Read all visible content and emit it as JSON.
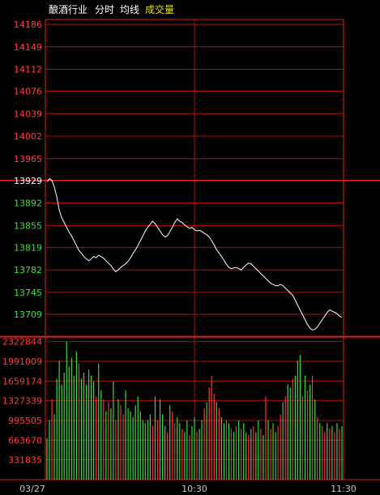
{
  "header": {
    "items": [
      {
        "text": "酿酒行业",
        "color": "#ffffff"
      },
      {
        "text": "分时",
        "color": "#ffffff"
      },
      {
        "text": "均线",
        "color": "#ffffff"
      },
      {
        "text": "成交量",
        "color": "#e8e800"
      }
    ]
  },
  "colors": {
    "background": "#000000",
    "grid": "#b01010",
    "frame": "#e02020",
    "price_line": "#ffffff",
    "up_tick": "#ff4040",
    "down_tick": "#40e040",
    "volume_up": "#ff3030",
    "volume_down": "#30dd30",
    "time_label": "#c8c8c8"
  },
  "chart_data": [
    {
      "type": "line",
      "name": "price",
      "ylim": [
        13672,
        14186
      ],
      "yticks": [
        {
          "label": "14186",
          "value": 14186,
          "dir": "up"
        },
        {
          "label": "14149",
          "value": 14149,
          "dir": "up"
        },
        {
          "label": "14112",
          "value": 14112,
          "dir": "up"
        },
        {
          "label": "14076",
          "value": 14076,
          "dir": "up"
        },
        {
          "label": "14039",
          "value": 14039,
          "dir": "up"
        },
        {
          "label": "14002",
          "value": 14002,
          "dir": "up"
        },
        {
          "label": "13965",
          "value": 13965,
          "dir": "up"
        },
        {
          "label": "13929",
          "value": 13929,
          "dir": "ref"
        },
        {
          "label": "13892",
          "value": 13892,
          "dir": "down"
        },
        {
          "label": "13855",
          "value": 13855,
          "dir": "down"
        },
        {
          "label": "13819",
          "value": 13819,
          "dir": "down"
        },
        {
          "label": "13782",
          "value": 13782,
          "dir": "down"
        },
        {
          "label": "13745",
          "value": 13745,
          "dir": "down"
        },
        {
          "label": "13709",
          "value": 13709,
          "dir": "down"
        }
      ],
      "xlabels": [
        "03/27",
        "10:30",
        "11:30"
      ],
      "x": [
        0,
        1,
        2,
        3,
        4,
        5,
        6,
        7,
        8,
        9,
        10,
        11,
        12,
        13,
        14,
        15,
        16,
        17,
        18,
        19,
        20,
        21,
        22,
        23,
        24,
        25,
        26,
        27,
        28,
        29,
        30,
        31,
        32,
        33,
        34,
        35,
        36,
        37,
        38,
        39,
        40,
        41,
        42,
        43,
        44,
        45,
        46,
        47,
        48,
        49,
        50,
        51,
        52,
        53,
        54,
        55,
        56,
        57,
        58,
        59,
        60,
        61,
        62,
        63,
        64,
        65,
        66,
        67,
        68,
        69,
        70,
        71,
        72,
        73,
        74,
        75,
        76,
        77,
        78,
        79,
        80,
        81,
        82,
        83,
        84,
        85,
        86,
        87,
        88,
        89,
        90,
        91,
        92,
        93,
        94,
        95,
        96,
        97,
        98,
        99,
        100,
        101,
        102,
        103,
        104,
        105,
        106,
        107,
        108,
        109,
        110,
        111,
        112,
        113,
        114,
        115,
        116,
        117,
        118,
        119,
        120
      ],
      "values": [
        13927,
        13932,
        13929,
        13918,
        13902,
        13880,
        13868,
        13860,
        13852,
        13844,
        13838,
        13830,
        13822,
        13814,
        13809,
        13804,
        13800,
        13797,
        13800,
        13804,
        13802,
        13806,
        13804,
        13801,
        13797,
        13793,
        13789,
        13783,
        13779,
        13782,
        13786,
        13789,
        13792,
        13796,
        13802,
        13809,
        13815,
        13822,
        13830,
        13838,
        13846,
        13852,
        13857,
        13862,
        13858,
        13852,
        13846,
        13840,
        13836,
        13838,
        13845,
        13852,
        13860,
        13866,
        13862,
        13860,
        13856,
        13853,
        13850,
        13852,
        13848,
        13846,
        13847,
        13845,
        13842,
        13840,
        13836,
        13830,
        13823,
        13815,
        13810,
        13804,
        13798,
        13791,
        13786,
        13784,
        13785,
        13786,
        13784,
        13782,
        13786,
        13790,
        13793,
        13792,
        13788,
        13784,
        13780,
        13776,
        13772,
        13768,
        13764,
        13760,
        13758,
        13756,
        13756,
        13758,
        13756,
        13752,
        13748,
        13744,
        13740,
        13732,
        13724,
        13716,
        13708,
        13700,
        13692,
        13686,
        13683,
        13684,
        13688,
        13694,
        13700,
        13706,
        13712,
        13716,
        13714,
        13712,
        13710,
        13706,
        13704
      ]
    },
    {
      "type": "bar",
      "name": "volume",
      "ylim": [
        0,
        2322844
      ],
      "yticks": [
        "2322844",
        "1991009",
        "1659174",
        "1327339",
        "995505",
        "663670",
        "331835"
      ],
      "x": [
        0,
        1,
        2,
        3,
        4,
        5,
        6,
        7,
        8,
        9,
        10,
        11,
        12,
        13,
        14,
        15,
        16,
        17,
        18,
        19,
        20,
        21,
        22,
        23,
        24,
        25,
        26,
        27,
        28,
        29,
        30,
        31,
        32,
        33,
        34,
        35,
        36,
        37,
        38,
        39,
        40,
        41,
        42,
        43,
        44,
        45,
        46,
        47,
        48,
        49,
        50,
        51,
        52,
        53,
        54,
        55,
        56,
        57,
        58,
        59,
        60,
        61,
        62,
        63,
        64,
        65,
        66,
        67,
        68,
        69,
        70,
        71,
        72,
        73,
        74,
        75,
        76,
        77,
        78,
        79,
        80,
        81,
        82,
        83,
        84,
        85,
        86,
        87,
        88,
        89,
        90,
        91,
        92,
        93,
        94,
        95,
        96,
        97,
        98,
        99,
        100,
        101,
        102,
        103,
        104,
        105,
        106,
        107,
        108,
        109,
        110,
        111,
        112,
        113,
        114,
        115,
        116,
        117,
        118,
        119,
        120
      ],
      "values": [
        700000,
        1000000,
        1350000,
        1100000,
        1700000,
        2000000,
        1600000,
        1800000,
        2320000,
        1900000,
        2050000,
        1750000,
        2150000,
        1950000,
        1700000,
        1800000,
        1600000,
        1850000,
        1750000,
        1650000,
        1400000,
        1950000,
        1500000,
        1350000,
        1150000,
        1300000,
        1200000,
        1650000,
        1000000,
        1350000,
        1250000,
        1100000,
        1500000,
        1200000,
        1150000,
        1050000,
        1250000,
        1400000,
        1150000,
        1000000,
        950000,
        1000000,
        1100000,
        900000,
        1400000,
        1000000,
        1350000,
        1100000,
        900000,
        800000,
        1250000,
        1150000,
        950000,
        1050000,
        950000,
        850000,
        800000,
        1000000,
        750000,
        900000,
        1050000,
        800000,
        850000,
        1000000,
        1200000,
        1300000,
        1550000,
        1750000,
        1450000,
        1300000,
        1200000,
        1050000,
        950000,
        1000000,
        950000,
        850000,
        800000,
        900000,
        1000000,
        850000,
        950000,
        800000,
        750000,
        850000,
        900000,
        800000,
        1000000,
        850000,
        750000,
        1400000,
        1000000,
        850000,
        950000,
        800000,
        900000,
        1100000,
        1300000,
        1400000,
        1600000,
        1550000,
        1700000,
        1750000,
        2000000,
        2100000,
        1400000,
        1750000,
        1500000,
        1600000,
        1750000,
        1350000,
        1050000,
        950000,
        900000,
        800000,
        950000,
        850000,
        900000,
        800000,
        950000,
        850000,
        900000
      ],
      "directions": [
        "down",
        "down",
        "up",
        "down",
        "down",
        "down",
        "down",
        "down",
        "down",
        "down",
        "down",
        "down",
        "down",
        "up",
        "down",
        "down",
        "down",
        "down",
        "down",
        "down",
        "up",
        "down",
        "down",
        "up",
        "down",
        "up",
        "down",
        "down",
        "up",
        "down",
        "up",
        "up",
        "down",
        "down",
        "down",
        "down",
        "down",
        "down",
        "down",
        "down",
        "down",
        "down",
        "down",
        "up",
        "down",
        "up",
        "down",
        "down",
        "down",
        "up",
        "down",
        "up",
        "up",
        "down",
        "down",
        "up",
        "down",
        "down",
        "up",
        "down",
        "down",
        "up",
        "down",
        "down",
        "up",
        "down",
        "up",
        "up",
        "up",
        "down",
        "up",
        "down",
        "down",
        "up",
        "down",
        "up",
        "down",
        "up",
        "down",
        "up",
        "down",
        "down",
        "up",
        "down",
        "up",
        "down",
        "down",
        "up",
        "down",
        "up",
        "down",
        "up",
        "down",
        "down",
        "up",
        "up",
        "down",
        "up",
        "down",
        "down",
        "up",
        "down",
        "down",
        "down",
        "up",
        "down",
        "up",
        "down",
        "up",
        "down",
        "up",
        "down",
        "up",
        "up",
        "down",
        "up",
        "down",
        "up",
        "down",
        "up",
        "down"
      ]
    }
  ]
}
